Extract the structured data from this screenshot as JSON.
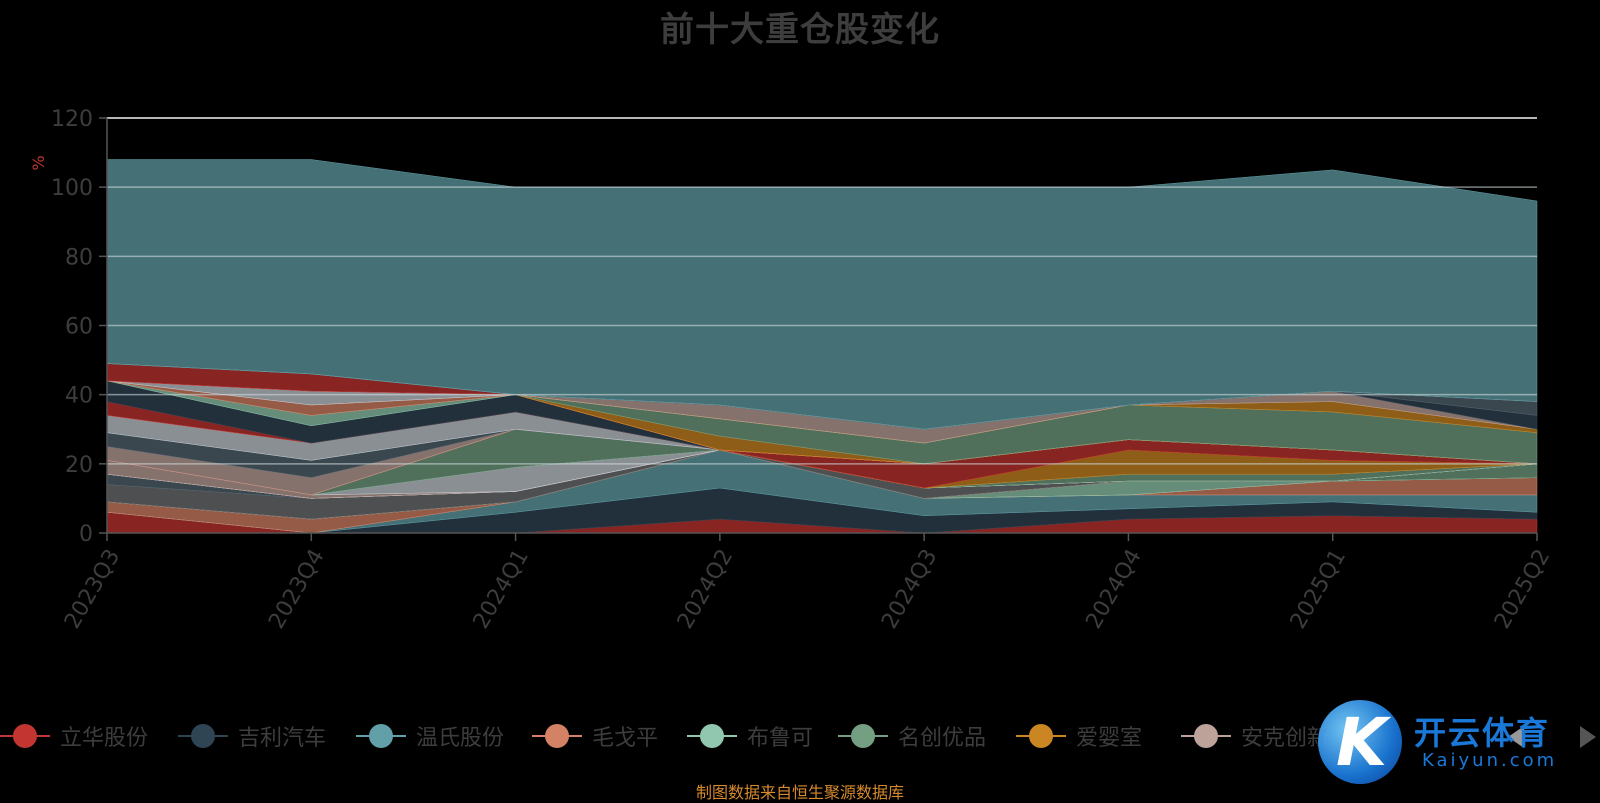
{
  "chart_data": {
    "type": "area",
    "stacked": true,
    "title": "前十大重仓股变化",
    "ylabel": "%",
    "ylim": [
      0,
      120
    ],
    "yticks": [
      "0",
      "20",
      "40",
      "60",
      "80",
      "100",
      "120"
    ],
    "categories": [
      "2023Q3",
      "2023Q4",
      "2024Q1",
      "2024Q2",
      "2024Q3",
      "2024Q4",
      "2025Q1",
      "2025Q2"
    ],
    "grid": true,
    "legend_position": "bottom",
    "series": [
      {
        "name": "立华股份",
        "color": "#c23531",
        "values": [
          6,
          0,
          0,
          4,
          0,
          4,
          5,
          4
        ]
      },
      {
        "name": "吉利汽车",
        "color": "#2f4554",
        "values": [
          0,
          0,
          6,
          9,
          5,
          3,
          4,
          2
        ]
      },
      {
        "name": "温氏股份",
        "color": "#61a0a8",
        "values": [
          0,
          0,
          3,
          11,
          5,
          4,
          2,
          5
        ]
      },
      {
        "name": "毛戈平",
        "color": "#d48265",
        "values": [
          3,
          4,
          0,
          0,
          0,
          0,
          4,
          5
        ]
      },
      {
        "name": "布鲁可",
        "color": "#91c7ae",
        "values": [
          0,
          0,
          0,
          0,
          0,
          4,
          0,
          0
        ]
      },
      {
        "name": "名创优品",
        "color": "#749f83",
        "values": [
          0,
          0,
          0,
          0,
          0,
          0,
          0,
          4
        ]
      },
      {
        "name": "爱婴室",
        "color": "#ca8622",
        "values": [
          0,
          0,
          0,
          0,
          0,
          0,
          0,
          0
        ]
      },
      {
        "name": "安克创新",
        "color": "#bda29a",
        "values": [
          0,
          0,
          0,
          0,
          0,
          0,
          0,
          0
        ]
      },
      {
        "name": "",
        "color": "#6e7074",
        "values": [
          5,
          6,
          3,
          0,
          3,
          0,
          0,
          0
        ]
      },
      {
        "name": "",
        "color": "#546570",
        "values": [
          3,
          0,
          0,
          0,
          0,
          0,
          0,
          0
        ]
      },
      {
        "name": "",
        "color": "#c4ccd3",
        "values": [
          0,
          0,
          0,
          0,
          0,
          0,
          0,
          0
        ]
      },
      {
        "name": "",
        "color": "#bda29a",
        "values": [
          4,
          1,
          0,
          0,
          0,
          0,
          0,
          0
        ]
      },
      {
        "name": "",
        "color": "#c4ccd3",
        "values": [
          0,
          0,
          7,
          0,
          0,
          0,
          0,
          0
        ]
      },
      {
        "name": "",
        "color": "#749f83",
        "values": [
          0,
          0,
          11,
          0,
          0,
          2,
          2,
          0
        ]
      },
      {
        "name": "",
        "color": "#ca8622",
        "values": [
          0,
          0,
          0,
          0,
          0,
          7,
          4,
          0
        ]
      },
      {
        "name": "",
        "color": "#c23531",
        "values": [
          0,
          0,
          0,
          0,
          7,
          3,
          3,
          0
        ]
      },
      {
        "name": "",
        "color": "#bda29a",
        "values": [
          4,
          5,
          0,
          0,
          0,
          0,
          0,
          0
        ]
      },
      {
        "name": "",
        "color": "#546570",
        "values": [
          4,
          5,
          0,
          0,
          0,
          0,
          0,
          0
        ]
      },
      {
        "name": "",
        "color": "#c4ccd3",
        "values": [
          5,
          5,
          5,
          0,
          0,
          0,
          0,
          0
        ]
      },
      {
        "name": "",
        "color": "#c23531",
        "values": [
          4,
          0,
          0,
          0,
          0,
          0,
          0,
          0
        ]
      },
      {
        "name": "",
        "color": "#2f4554",
        "values": [
          6,
          5,
          5,
          0,
          0,
          0,
          0,
          0
        ]
      },
      {
        "name": "",
        "color": "#91c7ae",
        "values": [
          0,
          3,
          0,
          0,
          0,
          0,
          0,
          0
        ]
      },
      {
        "name": "",
        "color": "#d48265",
        "values": [
          0,
          3,
          0,
          0,
          0,
          0,
          0,
          0
        ]
      },
      {
        "name": "",
        "color": "#c4ccd3",
        "values": [
          0,
          4,
          0,
          0,
          0,
          0,
          0,
          0
        ]
      },
      {
        "name": "",
        "color": "#c23531",
        "values": [
          5,
          5,
          0,
          0,
          0,
          0,
          0,
          0
        ]
      },
      {
        "name": "",
        "color": "#ca8622",
        "values": [
          0,
          0,
          0,
          4,
          0,
          0,
          0,
          0
        ]
      },
      {
        "name": "",
        "color": "#749f83",
        "values": [
          0,
          0,
          0,
          5,
          6,
          10,
          11,
          9
        ]
      },
      {
        "name": "",
        "color": "#ca8622",
        "values": [
          0,
          0,
          0,
          0,
          0,
          0,
          3,
          1
        ]
      },
      {
        "name": "",
        "color": "#bda29a",
        "values": [
          0,
          0,
          0,
          4,
          4,
          0,
          3,
          0
        ]
      },
      {
        "name": "",
        "color": "#2f4554",
        "values": [
          0,
          0,
          0,
          0,
          0,
          0,
          0,
          4
        ]
      },
      {
        "name": "",
        "color": "#546570",
        "values": [
          0,
          0,
          0,
          0,
          0,
          0,
          0,
          4
        ]
      },
      {
        "name": "",
        "color": "#6e7074",
        "values": [
          0,
          0,
          0,
          0,
          0,
          0,
          0,
          0
        ]
      },
      {
        "name": "",
        "color": "#61a0a8",
        "values": [
          59,
          62,
          60,
          63,
          70,
          63,
          64,
          58
        ]
      }
    ]
  },
  "legend": {
    "items": [
      {
        "name": "立华股份",
        "color": "#c23531"
      },
      {
        "name": "吉利汽车",
        "color": "#2f4554"
      },
      {
        "name": "温氏股份",
        "color": "#61a0a8"
      },
      {
        "name": "毛戈平",
        "color": "#d48265"
      },
      {
        "name": "布鲁可",
        "color": "#91c7ae"
      },
      {
        "name": "名创优品",
        "color": "#749f83"
      },
      {
        "name": "爱婴室",
        "color": "#ca8622"
      },
      {
        "name": "安克创新",
        "color": "#bda29a"
      }
    ]
  },
  "source_note": "制图数据来自恒生聚源数据库",
  "watermark": {
    "brand": "开云体育",
    "sub": "Kaiyun.com",
    "letter": "K"
  }
}
